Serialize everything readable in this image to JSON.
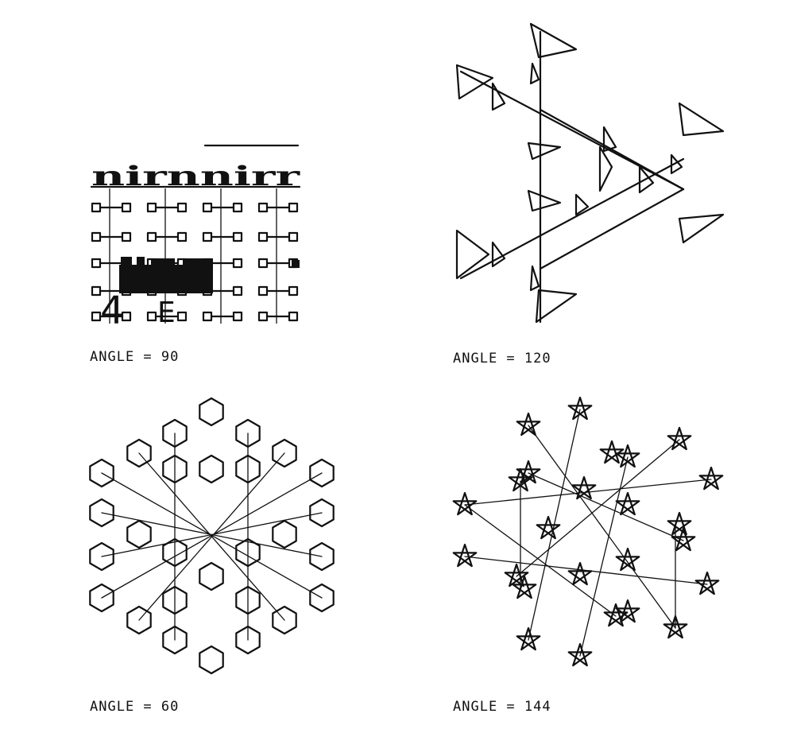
{
  "figures": [
    {
      "id": "angle-90",
      "caption": "ANGLE = 90",
      "angle": 90
    },
    {
      "id": "angle-120",
      "caption": "ANGLE = 120",
      "angle": 120
    },
    {
      "id": "angle-60",
      "caption": "ANGLE = 60",
      "angle": 60
    },
    {
      "id": "angle-144",
      "caption": "ANGLE = 144",
      "angle": 144
    }
  ],
  "colors": {
    "ink": "#111111",
    "background": "#ffffff"
  }
}
